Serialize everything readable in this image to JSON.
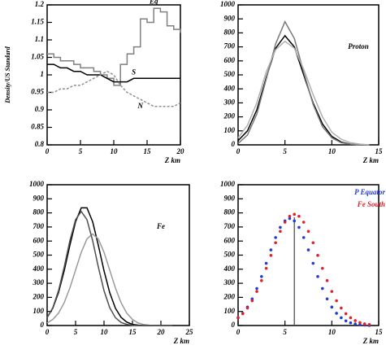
{
  "chart_data": [
    {
      "type": "line",
      "ylabel": "Density/US Standard",
      "xlabel": "Z km",
      "x": [
        0,
        1,
        2,
        3,
        4,
        5,
        6,
        7,
        8,
        9,
        10,
        11,
        12,
        13,
        14,
        15,
        16,
        17,
        18,
        19,
        20
      ],
      "xlim": [
        0,
        20
      ],
      "xticks": [
        0,
        5,
        10,
        15,
        20
      ],
      "ylim": [
        0.8,
        1.2
      ],
      "yticks": [
        0.8,
        0.85,
        0.9,
        0.95,
        1,
        1.05,
        1.1,
        1.15,
        1.2
      ],
      "series": [
        {
          "name": "Eq",
          "color": "#808080",
          "drawstyle": "steps",
          "values": [
            1.06,
            1.05,
            1.04,
            1.04,
            1.03,
            1.02,
            1.02,
            1.01,
            1.0,
            0.99,
            0.97,
            1.03,
            1.06,
            1.08,
            1.16,
            1.15,
            1.19,
            1.18,
            1.14,
            1.13,
            1.12
          ]
        },
        {
          "name": "S",
          "color": "#000000",
          "values": [
            1.03,
            1.03,
            1.02,
            1.02,
            1.01,
            1.01,
            1.0,
            1.0,
            1.0,
            0.99,
            0.98,
            0.98,
            0.98,
            0.99,
            0.99,
            0.99,
            0.99,
            0.99,
            0.99,
            0.99,
            0.99
          ]
        },
        {
          "name": "N",
          "color": "#909090",
          "linestyle": "dashed",
          "values": [
            0.95,
            0.95,
            0.96,
            0.96,
            0.97,
            0.97,
            0.98,
            0.99,
            1.0,
            1.01,
            1.0,
            0.97,
            0.95,
            0.94,
            0.93,
            0.92,
            0.91,
            0.91,
            0.91,
            0.91,
            0.92
          ]
        }
      ]
    },
    {
      "type": "line",
      "title": "Proton",
      "xlabel": "Z km",
      "x": [
        0,
        1,
        2,
        3,
        4,
        5,
        6,
        7,
        8,
        9,
        10,
        11,
        12,
        13,
        14
      ],
      "xlim": [
        0,
        15
      ],
      "xticks": [
        0,
        5,
        10,
        15
      ],
      "ylim": [
        0,
        1000
      ],
      "yticks": [
        0,
        100,
        200,
        300,
        400,
        500,
        600,
        700,
        800,
        900,
        1000
      ],
      "series": [
        {
          "color": "#000000",
          "values": [
            30,
            100,
            250,
            480,
            690,
            780,
            700,
            500,
            300,
            150,
            60,
            20,
            5,
            0,
            0
          ]
        },
        {
          "color": "#7a7a7a",
          "values": [
            10,
            70,
            220,
            470,
            720,
            880,
            760,
            520,
            290,
            130,
            50,
            15,
            5,
            0,
            0
          ]
        },
        {
          "color": "#b0b0b0",
          "values": [
            50,
            140,
            300,
            520,
            680,
            740,
            690,
            540,
            360,
            200,
            90,
            40,
            15,
            5,
            0
          ]
        }
      ]
    },
    {
      "type": "line",
      "title": "Fe",
      "xlabel": "Z km",
      "x": [
        0,
        1,
        2,
        3,
        4,
        5,
        6,
        7,
        8,
        9,
        10,
        11,
        12,
        13,
        14,
        15,
        16,
        17,
        18,
        19,
        20,
        21,
        22
      ],
      "xlim": [
        0,
        25
      ],
      "xticks": [
        0,
        5,
        10,
        15,
        20,
        25
      ],
      "ylim": [
        0,
        1000
      ],
      "yticks": [
        0,
        100,
        200,
        300,
        400,
        500,
        600,
        700,
        800,
        900,
        1000
      ],
      "series": [
        {
          "color": "#000000",
          "values": [
            58,
            123,
            234,
            389,
            570,
            737,
            836,
            836,
            737,
            570,
            389,
            234,
            123,
            58,
            24,
            8,
            3,
            0,
            0,
            0,
            0,
            0,
            0
          ]
        },
        {
          "color": "#9a9a9a",
          "values": [
            18,
            43,
            88,
            162,
            267,
            394,
            520,
            615,
            650,
            615,
            520,
            394,
            267,
            162,
            88,
            43,
            18,
            7,
            2,
            0,
            0,
            0,
            0
          ]
        },
        {
          "color": "#505050",
          "values": [
            56,
            127,
            247,
            416,
            603,
            752,
            810,
            752,
            603,
            416,
            247,
            127,
            56,
            22,
            8,
            2,
            0,
            0,
            0,
            0,
            0,
            0,
            0
          ]
        }
      ]
    },
    {
      "type": "scatter",
      "xlabel": "Z km",
      "legend": "upper right",
      "vline": 6,
      "x": [
        0,
        0.5,
        1,
        1.5,
        2,
        2.5,
        3,
        3.5,
        4,
        4.5,
        5,
        5.5,
        6,
        6.5,
        7,
        7.5,
        8,
        8.5,
        9,
        9.5,
        10,
        10.5,
        11,
        11.5,
        12,
        12.5,
        13,
        13.5,
        14
      ],
      "xlim": [
        0,
        15
      ],
      "xticks": [
        0,
        5,
        10,
        15
      ],
      "ylim": [
        0,
        1000
      ],
      "yticks": [
        0,
        100,
        200,
        300,
        400,
        500,
        600,
        700,
        800,
        900,
        1000
      ],
      "series": [
        {
          "name": "P Equator",
          "color": "#1f3bd8",
          "values": [
            55,
            87,
            131,
            189,
            263,
            348,
            442,
            537,
            625,
            697,
            743,
            760,
            743,
            697,
            625,
            537,
            442,
            348,
            263,
            189,
            131,
            87,
            55,
            33,
            19,
            11,
            6,
            3,
            1
          ]
        },
        {
          "name": "Fe South",
          "color": "#e0202a",
          "values": [
            55,
            84,
            124,
            176,
            242,
            319,
            406,
            498,
            588,
            669,
            734,
            776,
            790,
            776,
            734,
            669,
            588,
            498,
            406,
            319,
            242,
            176,
            124,
            84,
            55,
            35,
            21,
            12,
            7
          ]
        }
      ]
    }
  ]
}
